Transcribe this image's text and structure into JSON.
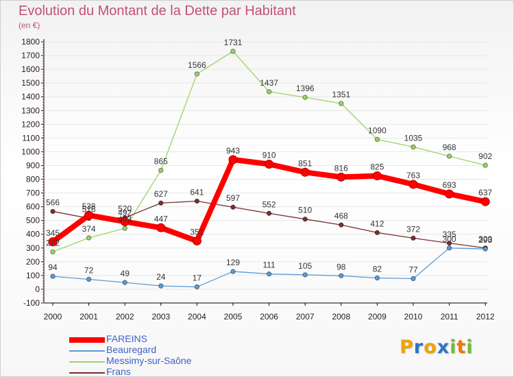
{
  "header": {
    "title": "Evolution du Montant de la Dette par Habitant",
    "subtitle": "(en €)"
  },
  "colors": {
    "title": "#c0507a",
    "axis": "#000000",
    "grid": "#e6e6e6",
    "legend_text": "#3d60c8"
  },
  "chart_data": {
    "type": "line",
    "title": "Evolution du Montant de la Dette par Habitant",
    "subtitle": "(en €)",
    "x": [
      "2000",
      "2001",
      "2002",
      "2003",
      "2004",
      "2005",
      "2006",
      "2007",
      "2008",
      "2009",
      "2010",
      "2011",
      "2012"
    ],
    "ylim": [
      -100,
      1800
    ],
    "yticks": [
      -100,
      0,
      100,
      200,
      300,
      400,
      500,
      600,
      700,
      800,
      900,
      1000,
      1100,
      1200,
      1300,
      1400,
      1500,
      1600,
      1700,
      1800
    ],
    "grid": true,
    "legend_position": "bottom-left",
    "series": [
      {
        "name": "FAREINS",
        "color": "#ff0000",
        "values": [
          345,
          538,
          492,
          447,
          351,
          943,
          910,
          851,
          816,
          825,
          763,
          693,
          637
        ]
      },
      {
        "name": "Beauregard",
        "color": "#5b9bd5",
        "values": [
          94,
          72,
          49,
          24,
          17,
          129,
          111,
          105,
          98,
          82,
          77,
          300,
          293
        ]
      },
      {
        "name": "Messimy-sur-Saône",
        "color": "#99d466",
        "values": [
          272,
          374,
          443,
          865,
          1566,
          1731,
          1437,
          1396,
          1351,
          1090,
          1035,
          968,
          902
        ]
      },
      {
        "name": "Frans",
        "color": "#7a2f2f",
        "values": [
          566,
          516,
          520,
          627,
          641,
          597,
          552,
          510,
          468,
          412,
          372,
          335,
          300
        ]
      }
    ]
  },
  "logo": {
    "letters": [
      {
        "ch": "P",
        "color": "#f0a400"
      },
      {
        "ch": "r",
        "color": "#2e75c8"
      },
      {
        "ch": "o",
        "color": "#f0a400"
      },
      {
        "ch": "x",
        "color": "#2e75c8"
      },
      {
        "ch": "i",
        "color": "#6fbf3a"
      },
      {
        "ch": "t",
        "color": "#f07800"
      },
      {
        "ch": "i",
        "color": "#6fbf3a"
      }
    ]
  }
}
